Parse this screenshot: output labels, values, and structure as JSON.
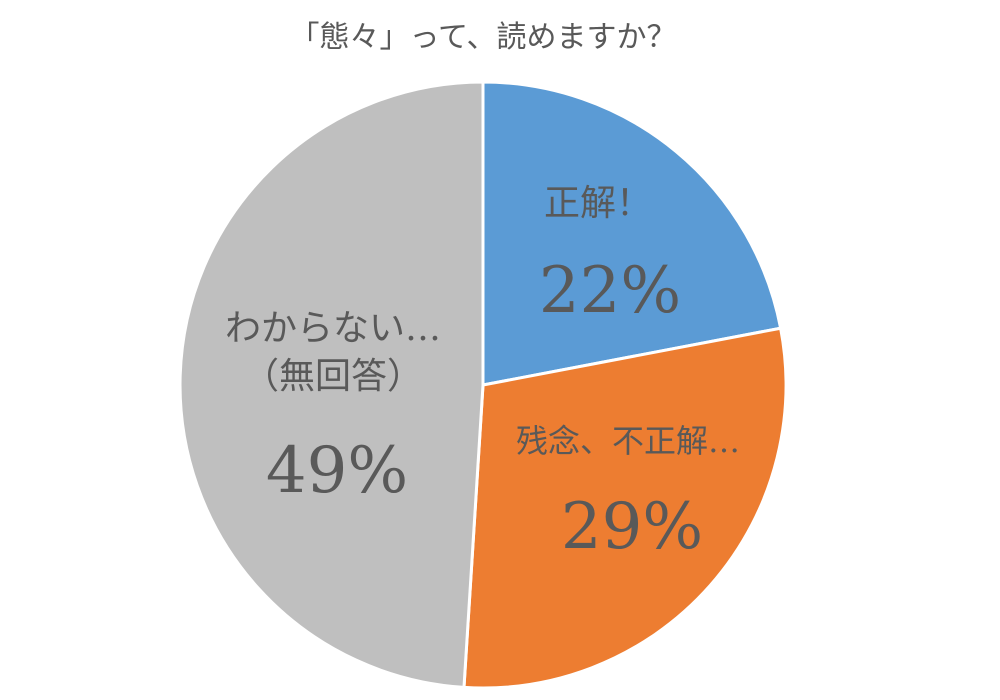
{
  "chart_data": {
    "type": "pie",
    "title": "「態々」って、読めますか？",
    "slices": [
      {
        "label": "正解！",
        "value": 22,
        "value_label": "22%",
        "color": "#5B9BD5"
      },
      {
        "label": "残念、不正解…",
        "value": 29,
        "value_label": "29%",
        "color": "#ED7D31"
      },
      {
        "label": "わからない…\n（無回答）",
        "value": 49,
        "value_label": "49%",
        "color": "#BFBFBF"
      }
    ],
    "start": "12 o'clock",
    "direction": "clockwise",
    "legend": "none"
  }
}
